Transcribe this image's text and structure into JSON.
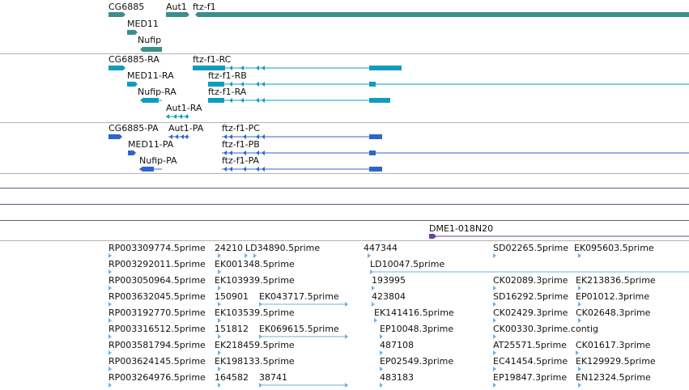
{
  "colors": {
    "gene": "#3a8f8c",
    "transcript": "#119cbe",
    "cds": "#2d65cc",
    "clone": "#6b42a8",
    "est": "#71b1dd",
    "divider_grey": "#b3b3b3",
    "divider_purple": "#6e4a9c"
  },
  "tracks": {
    "genes": {
      "labels": [
        "CG6885",
        "Aut1",
        "ftz-f1",
        "MED11",
        "Nufip"
      ]
    },
    "transcripts": {
      "labels": [
        "CG6885-RA",
        "ftz-f1-RC",
        "MED11-RA",
        "ftz-f1-RB",
        "Nufip-RA",
        "ftz-f1-RA",
        "Aut1-RA"
      ]
    },
    "proteins": {
      "labels": [
        "CG6885-PA",
        "Aut1-PA",
        "ftz-f1-PC",
        "MED11-PA",
        "ftz-f1-PB",
        "Nufip-PA",
        "ftz-f1-PA"
      ]
    },
    "clones": {
      "labels": [
        "DME1-018N20"
      ]
    },
    "ests": {
      "labels": [
        "RP003309774.5prime",
        "24210",
        "LD34890.5prime",
        "447344",
        "SD02265.5prime",
        "EK095603.5prime",
        "RP003292011.5prime",
        "EK001348.5prime",
        "LD10047.5prime",
        "RP003050964.5prime",
        "EK103939.5prime",
        "193995",
        "CK02089.3prime",
        "EK213836.5prime",
        "RP003632045.5prime",
        "150901",
        "EK043717.5prime",
        "423804",
        "SD16292.5prime",
        "EP01012.3prime",
        "RP003192770.5prime",
        "EK103539.5prime",
        "EK141416.5prime",
        "CK02429.3prime",
        "CK02648.3prime",
        "RP003316512.5prime",
        "151812",
        "EK069615.5prime",
        "EP10048.3prime",
        "CK00330.3prime.contig",
        "RP003581794.5prime",
        "EK218459.5prime",
        "487108",
        "AT25571.5prime",
        "CK01617.3prime",
        "RP003624145.5prime",
        "EK198133.5prime",
        "EP02549.3prime",
        "EC41454.5prime",
        "EK129929.5prime",
        "RP003264976.5prime",
        "164582",
        "38741",
        "483183",
        "EP19847.3prime",
        "EN12324.5prime"
      ]
    }
  }
}
